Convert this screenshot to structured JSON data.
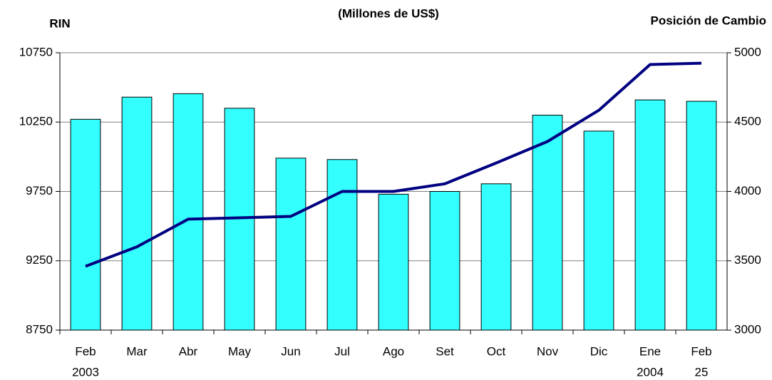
{
  "chart_data": {
    "type": "bar_line",
    "title": "(Millones de US$)",
    "ylabel": "RIN",
    "y2label": "Posición de Cambio",
    "categories": [
      "Feb",
      "Mar",
      "Abr",
      "May",
      "Jun",
      "Jul",
      "Ago",
      "Set",
      "Oct",
      "Nov",
      "Dic",
      "Ene",
      "Feb"
    ],
    "category_sublabels": [
      "2003",
      null,
      null,
      null,
      null,
      null,
      null,
      null,
      null,
      null,
      null,
      "2004",
      "25"
    ],
    "series": [
      {
        "type": "bar",
        "color": "#33ffff",
        "values": [
          10270,
          10430,
          10455,
          10350,
          9990,
          9980,
          9730,
          9750,
          9805,
          10300,
          10185,
          10410,
          10400
        ]
      },
      {
        "type": "line",
        "axis": "y2",
        "color": "#000080",
        "values": [
          3460,
          3600,
          3800,
          3810,
          3820,
          4000,
          4000,
          4055,
          4205,
          4360,
          4585,
          4915,
          4925
        ]
      }
    ],
    "ylim": [
      8750,
      10750
    ],
    "yticks": [
      8750,
      9250,
      9750,
      10250,
      10750
    ],
    "y2lim": [
      3000,
      5000
    ],
    "y2ticks": [
      3000,
      3500,
      4000,
      4500,
      5000
    ],
    "grid": true
  }
}
